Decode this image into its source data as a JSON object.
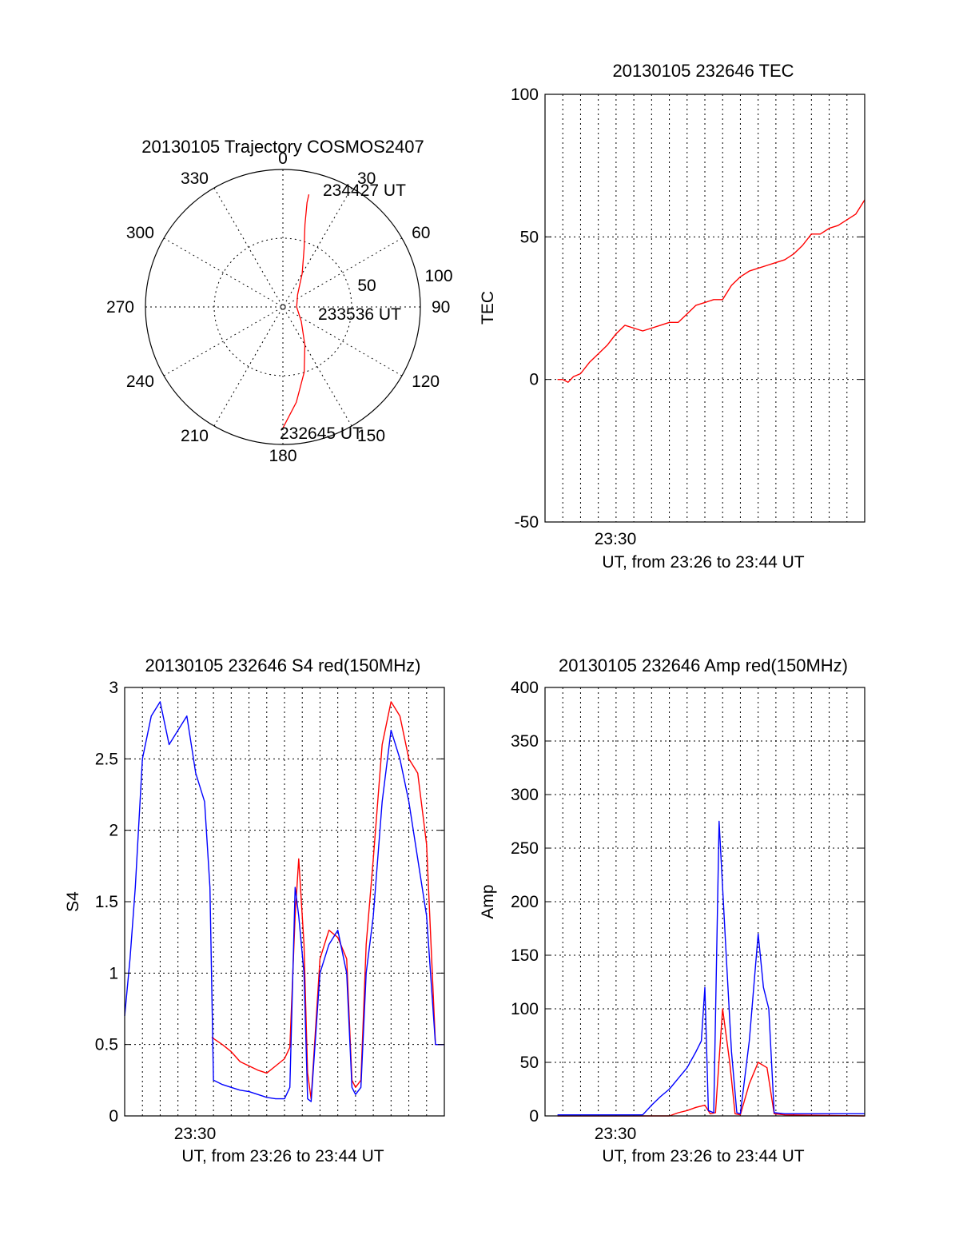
{
  "colors": {
    "red": "#ff0000",
    "blue": "#0000ff",
    "axis": "#000000"
  },
  "chart_data": [
    {
      "id": "trajectory",
      "type": "scatter",
      "subtype": "polar",
      "title": "20130105 Trajectory COSMOS2407",
      "azimuth_labels": [
        "0",
        "30",
        "60",
        "90",
        "120",
        "150",
        "180",
        "210",
        "240",
        "270",
        "300",
        "330"
      ],
      "radius_labels": [
        "50",
        "100"
      ],
      "radial_range": [
        0,
        100
      ],
      "grid": true,
      "annotations": [
        "234427 UT",
        "233536 UT",
        "232645 UT"
      ],
      "series": [
        {
          "color": "red",
          "points_az_r": [
            [
              180,
              88
            ],
            [
              172,
              70
            ],
            [
              162,
              50
            ],
            [
              150,
              32
            ],
            [
              128,
              17
            ],
            [
              90,
              10
            ],
            [
              50,
              14
            ],
            [
              30,
              28
            ],
            [
              20,
              45
            ],
            [
              15,
              62
            ],
            [
              13,
              78
            ],
            [
              13,
              84
            ]
          ]
        }
      ]
    },
    {
      "id": "tec",
      "type": "line",
      "title": "20130105 232646 TEC",
      "ylabel": "TEC",
      "xlabel": "UT, from 23:26 to 23:44 UT",
      "xlim": [
        0,
        18
      ],
      "ylim": [
        -50,
        100
      ],
      "yticks": [
        "-50",
        "0",
        "50",
        "100"
      ],
      "xtick_label": "23:30",
      "grid": true,
      "series": [
        {
          "color": "red",
          "x": [
            0.7,
            1.0,
            1.3,
            1.6,
            2.0,
            2.5,
            3.0,
            3.5,
            4.0,
            4.5,
            5.0,
            5.5,
            6.0,
            6.5,
            7.0,
            7.5,
            8.0,
            8.5,
            9.0,
            9.5,
            10.0,
            10.5,
            11.0,
            11.5,
            12.0,
            12.5,
            13.0,
            13.5,
            14.0,
            14.5,
            15.0,
            15.5,
            16.0,
            16.5,
            17.0,
            17.5,
            18.0
          ],
          "y": [
            0,
            0,
            -1,
            1,
            2,
            6,
            9,
            12,
            16,
            19,
            18,
            17,
            18,
            19,
            20,
            20,
            23,
            26,
            27,
            28,
            28,
            33,
            36,
            38,
            39,
            40,
            41,
            42,
            44,
            47,
            51,
            51,
            53,
            54,
            56,
            58,
            63
          ]
        }
      ]
    },
    {
      "id": "s4",
      "type": "line",
      "title": "20130105 232646 S4 red(150MHz)",
      "ylabel": "S4",
      "xlabel": "UT, from 23:26 to 23:44 UT",
      "xlim": [
        0,
        18
      ],
      "ylim": [
        0,
        3
      ],
      "yticks": [
        "0",
        "0.5",
        "1",
        "1.5",
        "2",
        "2.5",
        "3"
      ],
      "xtick_label": "23:30",
      "grid": true,
      "series": [
        {
          "color": "red",
          "x": [
            4.9,
            5.5,
            6.0,
            6.5,
            7.0,
            7.5,
            8.0,
            8.5,
            9.0,
            9.3,
            9.6,
            9.8,
            10.1,
            10.3,
            10.5,
            11.0,
            11.5,
            12.0,
            12.5,
            12.8,
            13.0,
            13.3,
            13.6,
            14.0,
            14.5,
            15.0,
            15.5,
            16.0,
            16.5,
            17.0,
            17.5,
            18.0
          ],
          "y": [
            0.55,
            0.5,
            0.45,
            0.38,
            0.35,
            0.32,
            0.3,
            0.35,
            0.4,
            0.48,
            1.4,
            1.8,
            1.2,
            0.3,
            0.12,
            1.1,
            1.3,
            1.25,
            1.1,
            0.25,
            0.2,
            0.25,
            1.2,
            1.8,
            2.6,
            2.9,
            2.8,
            2.5,
            2.4,
            1.9,
            0.5,
            0.5
          ]
        },
        {
          "color": "blue",
          "x": [
            0,
            0.3,
            0.6,
            1.0,
            1.5,
            2.0,
            2.5,
            3.0,
            3.5,
            4.0,
            4.5,
            4.8,
            5.0,
            5.5,
            6.0,
            6.5,
            7.0,
            7.5,
            8.0,
            8.5,
            9.0,
            9.3,
            9.6,
            9.8,
            10.1,
            10.3,
            10.5,
            11.0,
            11.5,
            12.0,
            12.5,
            12.8,
            13.0,
            13.3,
            13.6,
            14.0,
            14.5,
            15.0,
            15.5,
            16.0,
            16.5,
            17.0,
            17.5,
            18.0
          ],
          "y": [
            0.7,
            1.1,
            1.6,
            2.5,
            2.8,
            2.9,
            2.6,
            2.7,
            2.8,
            2.4,
            2.2,
            1.6,
            0.25,
            0.22,
            0.2,
            0.18,
            0.17,
            0.15,
            0.13,
            0.12,
            0.12,
            0.2,
            1.6,
            1.4,
            1.0,
            0.12,
            0.1,
            1.0,
            1.2,
            1.3,
            1.0,
            0.2,
            0.15,
            0.2,
            1.0,
            1.4,
            2.2,
            2.7,
            2.5,
            2.2,
            1.8,
            1.4,
            0.5,
            0.5
          ]
        }
      ]
    },
    {
      "id": "amp",
      "type": "line",
      "title": "20130105 232646 Amp red(150MHz)",
      "ylabel": "Amp",
      "xlabel": "UT, from 23:26 to 23:44 UT",
      "xlim": [
        0,
        18
      ],
      "ylim": [
        0,
        400
      ],
      "yticks": [
        "0",
        "50",
        "100",
        "150",
        "200",
        "250",
        "300",
        "350",
        "400"
      ],
      "xtick_label": "23:30",
      "grid": true,
      "series": [
        {
          "color": "red",
          "x": [
            0.7,
            6.5,
            7.0,
            7.5,
            8.0,
            8.5,
            9.0,
            9.3,
            9.6,
            10.0,
            10.4,
            10.7,
            11.0,
            11.5,
            12.0,
            12.5,
            12.9,
            13.5,
            18.0
          ],
          "y": [
            0,
            0,
            0,
            3,
            5,
            8,
            10,
            2,
            3,
            100,
            50,
            2,
            1,
            30,
            50,
            45,
            2,
            1,
            0
          ]
        },
        {
          "color": "blue",
          "x": [
            0.7,
            5.0,
            5.5,
            6.0,
            6.5,
            7.0,
            7.5,
            8.0,
            8.5,
            8.8,
            9.0,
            9.2,
            9.5,
            9.8,
            10.2,
            10.5,
            10.8,
            11.0,
            11.5,
            12.0,
            12.3,
            12.6,
            12.9,
            13.5,
            18.0
          ],
          "y": [
            1,
            1,
            1,
            10,
            18,
            25,
            35,
            45,
            60,
            70,
            120,
            5,
            3,
            275,
            150,
            60,
            3,
            2,
            70,
            170,
            120,
            100,
            3,
            2,
            2
          ]
        }
      ]
    }
  ]
}
